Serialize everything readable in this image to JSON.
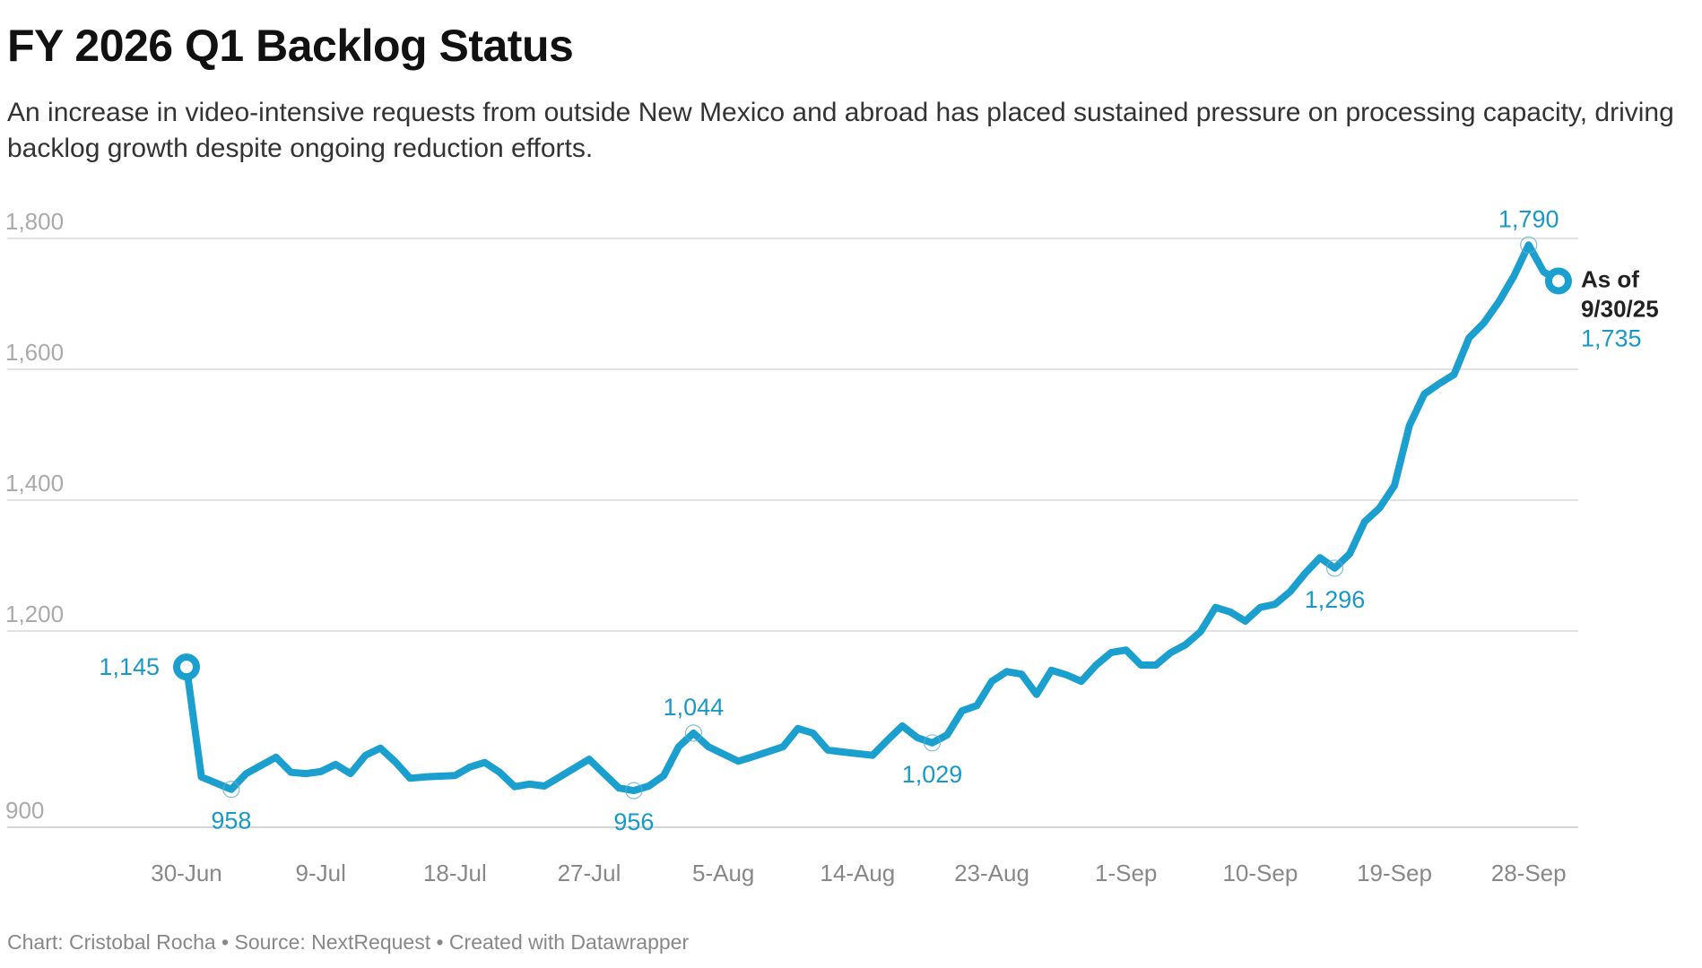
{
  "chart_data": {
    "type": "line",
    "title": "FY 2026 Q1 Backlog Status",
    "subtitle": "An increase in video-intensive requests from outside New Mexico and abroad has placed sustained pressure on processing capacity, driving backlog growth despite ongoing reduction efforts.",
    "footer": "Chart: Cristobal Rocha • Source: NextRequest • Created with Datawrapper",
    "xlabel": "",
    "ylabel": "",
    "year": 2025,
    "ylim": [
      900,
      1800
    ],
    "yticks": [
      {
        "value": 900,
        "label": "900"
      },
      {
        "value": 1200,
        "label": "1,200"
      },
      {
        "value": 1400,
        "label": "1,400"
      },
      {
        "value": 1600,
        "label": "1,600"
      },
      {
        "value": 1800,
        "label": "1,800"
      }
    ],
    "xticks": [
      {
        "date": "2025-06-30",
        "label": "30-Jun"
      },
      {
        "date": "2025-07-09",
        "label": "9-Jul"
      },
      {
        "date": "2025-07-18",
        "label": "18-Jul"
      },
      {
        "date": "2025-07-27",
        "label": "27-Jul"
      },
      {
        "date": "2025-08-05",
        "label": "5-Aug"
      },
      {
        "date": "2025-08-14",
        "label": "14-Aug"
      },
      {
        "date": "2025-08-23",
        "label": "23-Aug"
      },
      {
        "date": "2025-09-01",
        "label": "1-Sep"
      },
      {
        "date": "2025-09-10",
        "label": "10-Sep"
      },
      {
        "date": "2025-09-19",
        "label": "19-Sep"
      },
      {
        "date": "2025-09-28",
        "label": "28-Sep"
      }
    ],
    "grid": true,
    "line_color": "#1a9fcf",
    "series": [
      {
        "name": "Backlog",
        "x": [
          "2025-06-30",
          "2025-07-01",
          "2025-07-03",
          "2025-07-04",
          "2025-07-06",
          "2025-07-07",
          "2025-07-08",
          "2025-07-09",
          "2025-07-10",
          "2025-07-11",
          "2025-07-12",
          "2025-07-13",
          "2025-07-14",
          "2025-07-15",
          "2025-07-16",
          "2025-07-18",
          "2025-07-19",
          "2025-07-20",
          "2025-07-21",
          "2025-07-22",
          "2025-07-23",
          "2025-07-24",
          "2025-07-27",
          "2025-07-29",
          "2025-07-30",
          "2025-07-31",
          "2025-08-01",
          "2025-08-02",
          "2025-08-03",
          "2025-08-04",
          "2025-08-06",
          "2025-08-07",
          "2025-08-09",
          "2025-08-10",
          "2025-08-11",
          "2025-08-12",
          "2025-08-13",
          "2025-08-15",
          "2025-08-16",
          "2025-08-17",
          "2025-08-18",
          "2025-08-19",
          "2025-08-20",
          "2025-08-21",
          "2025-08-22",
          "2025-08-23",
          "2025-08-24",
          "2025-08-25",
          "2025-08-26",
          "2025-08-27",
          "2025-08-28",
          "2025-08-29",
          "2025-08-30",
          "2025-08-31",
          "2025-09-01",
          "2025-09-02",
          "2025-09-03",
          "2025-09-04",
          "2025-09-05",
          "2025-09-06",
          "2025-09-07",
          "2025-09-08",
          "2025-09-09",
          "2025-09-10",
          "2025-09-11",
          "2025-09-12",
          "2025-09-13",
          "2025-09-14",
          "2025-09-15",
          "2025-09-16",
          "2025-09-17",
          "2025-09-18",
          "2025-09-19",
          "2025-09-20",
          "2025-09-21",
          "2025-09-22",
          "2025-09-23",
          "2025-09-24",
          "2025-09-25",
          "2025-09-26",
          "2025-09-27",
          "2025-09-28",
          "2025-09-29",
          "2025-09-30"
        ],
        "values": [
          1145,
          977,
          958,
          982,
          1007,
          984,
          982,
          985,
          996,
          982,
          1010,
          1021,
          1000,
          975,
          977,
          979,
          992,
          999,
          984,
          962,
          966,
          963,
          1004,
          960,
          956,
          963,
          979,
          1023,
          1044,
          1023,
          1001,
          1008,
          1023,
          1051,
          1044,
          1018,
          1015,
          1010,
          1033,
          1055,
          1037,
          1029,
          1041,
          1078,
          1086,
          1123,
          1138,
          1134,
          1103,
          1140,
          1133,
          1123,
          1148,
          1167,
          1171,
          1148,
          1148,
          1167,
          1179,
          1199,
          1236,
          1229,
          1215,
          1236,
          1241,
          1260,
          1288,
          1312,
          1296,
          1318,
          1367,
          1388,
          1422,
          1514,
          1562,
          1578,
          1592,
          1648,
          1671,
          1703,
          1742,
          1790,
          1749,
          1735
        ]
      }
    ],
    "annotations": [
      {
        "date": "2025-06-30",
        "value": 1145,
        "label": "1,145",
        "position": "left",
        "marker": "endpoint"
      },
      {
        "date": "2025-07-03",
        "value": 958,
        "label": "958",
        "position": "below",
        "marker": "highlight"
      },
      {
        "date": "2025-07-30",
        "value": 956,
        "label": "956",
        "position": "below",
        "marker": "highlight"
      },
      {
        "date": "2025-08-03",
        "value": 1044,
        "label": "1,044",
        "position": "above",
        "marker": "highlight"
      },
      {
        "date": "2025-08-19",
        "value": 1029,
        "label": "1,029",
        "position": "below",
        "marker": "highlight"
      },
      {
        "date": "2025-09-15",
        "value": 1296,
        "label": "1,296",
        "position": "below",
        "marker": "highlight"
      },
      {
        "date": "2025-09-28",
        "value": 1790,
        "label": "1,790",
        "position": "above",
        "marker": "highlight"
      },
      {
        "date": "2025-09-30",
        "value": 1735,
        "label": "1,735",
        "position": "right",
        "marker": "endpoint",
        "heading_lines": [
          "As of",
          "9/30/25"
        ]
      }
    ]
  }
}
